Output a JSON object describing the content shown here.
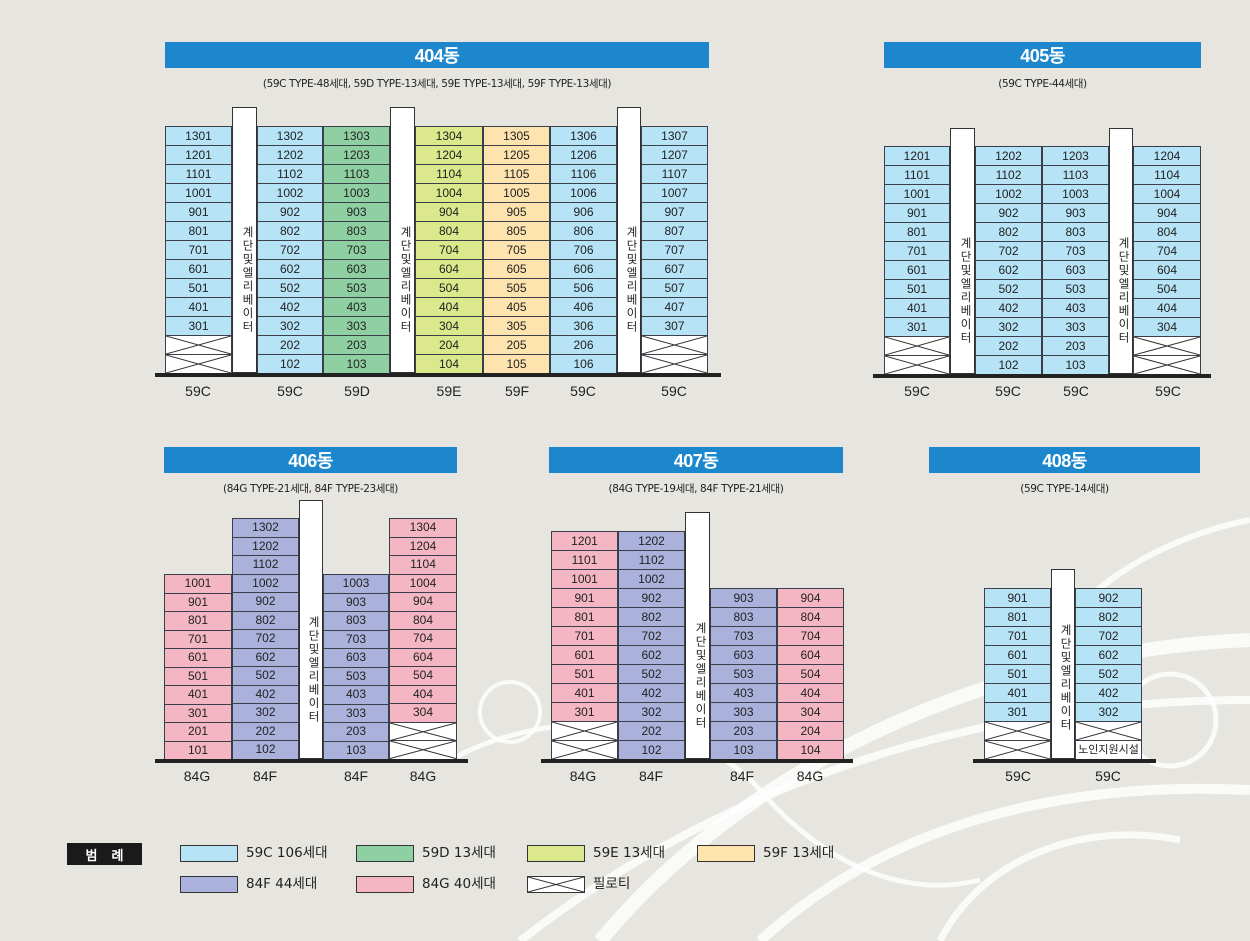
{
  "colors": {
    "59C": "#b6e3f6",
    "59D": "#8fd0a2",
    "59E": "#dbe98c",
    "59F": "#fde3ad",
    "84F": "#aab1db",
    "84G": "#f5b6c4",
    "header": "#1c87cc"
  },
  "elevator_text": "계단및엘리베이터",
  "buildings": [
    {
      "id": "404",
      "name": "404동",
      "subtitle": "(59C TYPE-48세대, 59D TYPE-13세대, 59E TYPE-13세대, 59F TYPE-13세대)",
      "columns": [
        {
          "type": "59C",
          "units": [
            "1301",
            "1201",
            "1101",
            "1001",
            "901",
            "801",
            "701",
            "601",
            "501",
            "401",
            "301",
            "P",
            "P"
          ]
        },
        {
          "type": "59C",
          "units": [
            "1302",
            "1202",
            "1102",
            "1002",
            "902",
            "802",
            "702",
            "602",
            "502",
            "402",
            "302",
            "202",
            "102"
          ]
        },
        {
          "type": "59D",
          "units": [
            "1303",
            "1203",
            "1103",
            "1003",
            "903",
            "803",
            "703",
            "603",
            "503",
            "403",
            "303",
            "203",
            "103"
          ]
        },
        {
          "type": "59E",
          "units": [
            "1304",
            "1204",
            "1104",
            "1004",
            "904",
            "804",
            "704",
            "604",
            "504",
            "404",
            "304",
            "204",
            "104"
          ]
        },
        {
          "type": "59F",
          "units": [
            "1305",
            "1205",
            "1105",
            "1005",
            "905",
            "805",
            "705",
            "605",
            "505",
            "405",
            "305",
            "205",
            "105"
          ]
        },
        {
          "type": "59C",
          "units": [
            "1306",
            "1206",
            "1106",
            "1006",
            "906",
            "806",
            "706",
            "606",
            "506",
            "406",
            "306",
            "206",
            "106"
          ]
        },
        {
          "type": "59C",
          "units": [
            "1307",
            "1207",
            "1107",
            "1007",
            "907",
            "807",
            "707",
            "607",
            "507",
            "407",
            "307",
            "P",
            "P"
          ]
        }
      ]
    },
    {
      "id": "405",
      "name": "405동",
      "subtitle": "(59C TYPE-44세대)",
      "columns": [
        {
          "type": "59C",
          "units": [
            "1201",
            "1101",
            "1001",
            "901",
            "801",
            "701",
            "601",
            "501",
            "401",
            "301",
            "P",
            "P"
          ]
        },
        {
          "type": "59C",
          "units": [
            "1202",
            "1102",
            "1002",
            "902",
            "802",
            "702",
            "602",
            "502",
            "402",
            "302",
            "202",
            "102"
          ]
        },
        {
          "type": "59C",
          "units": [
            "1203",
            "1103",
            "1003",
            "903",
            "803",
            "703",
            "603",
            "503",
            "403",
            "303",
            "203",
            "103"
          ]
        },
        {
          "type": "59C",
          "units": [
            "1204",
            "1104",
            "1004",
            "904",
            "804",
            "704",
            "604",
            "504",
            "404",
            "304",
            "P",
            "P"
          ]
        }
      ]
    },
    {
      "id": "406",
      "name": "406동",
      "subtitle": "(84G TYPE-21세대, 84F TYPE-23세대)",
      "columns": [
        {
          "type": "84G",
          "units": [
            "1001",
            "901",
            "801",
            "701",
            "601",
            "501",
            "401",
            "301",
            "201",
            "101"
          ]
        },
        {
          "type": "84F",
          "units": [
            "1302",
            "1202",
            "1102",
            "1002",
            "902",
            "802",
            "702",
            "602",
            "502",
            "402",
            "302",
            "202",
            "102"
          ]
        },
        {
          "type": "84F",
          "units": [
            "1003",
            "903",
            "803",
            "703",
            "603",
            "503",
            "403",
            "303",
            "203",
            "103"
          ]
        },
        {
          "type": "84G",
          "units": [
            "1304",
            "1204",
            "1104",
            "1004",
            "904",
            "804",
            "704",
            "604",
            "504",
            "404",
            "304",
            "P",
            "P"
          ]
        }
      ]
    },
    {
      "id": "407",
      "name": "407동",
      "subtitle": "(84G TYPE-19세대, 84F TYPE-21세대)",
      "columns": [
        {
          "type": "84G",
          "units": [
            "1201",
            "1101",
            "1001",
            "901",
            "801",
            "701",
            "601",
            "501",
            "401",
            "301",
            "P",
            "P"
          ]
        },
        {
          "type": "84F",
          "units": [
            "1202",
            "1102",
            "1002",
            "902",
            "802",
            "702",
            "602",
            "502",
            "402",
            "302",
            "202",
            "102"
          ]
        },
        {
          "type": "84F",
          "units": [
            "903",
            "803",
            "703",
            "603",
            "503",
            "403",
            "303",
            "203",
            "103"
          ]
        },
        {
          "type": "84G",
          "units": [
            "904",
            "804",
            "704",
            "604",
            "504",
            "404",
            "304",
            "204",
            "104"
          ]
        }
      ]
    },
    {
      "id": "408",
      "name": "408동",
      "subtitle": "(59C TYPE-14세대)",
      "columns": [
        {
          "type": "59C",
          "units": [
            "901",
            "801",
            "701",
            "601",
            "501",
            "401",
            "301",
            "P",
            "P"
          ]
        },
        {
          "type": "59C",
          "units": [
            "902",
            "802",
            "702",
            "602",
            "502",
            "402",
            "302",
            "P",
            "노인지원시설"
          ]
        }
      ]
    }
  ],
  "legend": {
    "title": "범례",
    "items": [
      {
        "type": "59C",
        "label": "59C 106세대"
      },
      {
        "type": "59D",
        "label": "59D 13세대"
      },
      {
        "type": "59E",
        "label": "59E 13세대"
      },
      {
        "type": "59F",
        "label": "59F 13세대"
      },
      {
        "type": "84F",
        "label": "84F 44세대"
      },
      {
        "type": "84G",
        "label": "84G 40세대"
      },
      {
        "type": "P",
        "label": "필로티"
      }
    ]
  }
}
